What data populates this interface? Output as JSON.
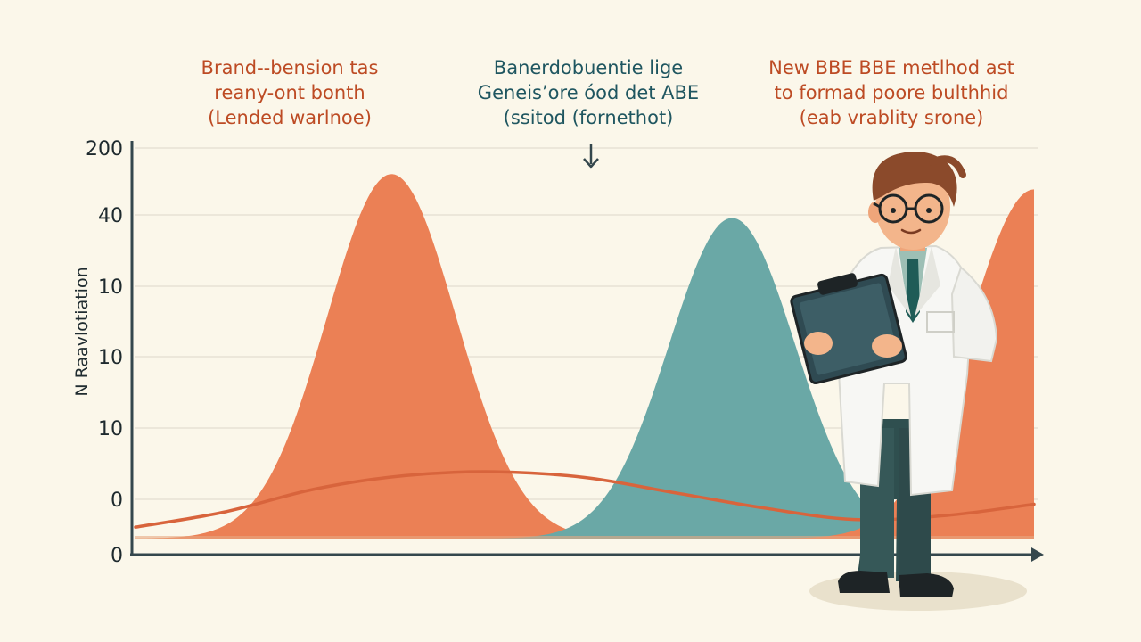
{
  "colors": {
    "background": "#FBF7EA",
    "orange": "#EB8055",
    "teal": "#6AA8A6",
    "line": "#D8643C",
    "axis": "#34474D",
    "annotation_orange": "#BD4B24",
    "annotation_teal": "#1F5660",
    "grid": "#ECE7DA"
  },
  "chart_data": {
    "type": "area",
    "ylabel": "N Raavlotiation",
    "y_ticks": [
      "200",
      "40",
      "10",
      "10",
      "10",
      "0",
      "0"
    ],
    "series": [
      {
        "color": "#EB8055",
        "center": 0.285,
        "width": 0.072,
        "peak": 0.955
      },
      {
        "color": "#6AA8A6",
        "center": 0.664,
        "width": 0.07,
        "peak": 0.84
      },
      {
        "color": "#EB8055",
        "center": 1.0,
        "width": 0.073,
        "peak": 0.915
      }
    ],
    "trend_line": {
      "color": "#D8643C",
      "x": [
        0.0,
        0.1,
        0.2,
        0.3,
        0.4,
        0.5,
        0.6,
        0.7,
        0.8,
        0.9,
        1.0
      ],
      "y": [
        0.03,
        0.07,
        0.13,
        0.165,
        0.175,
        0.16,
        0.12,
        0.08,
        0.05,
        0.06,
        0.09
      ]
    }
  },
  "annotations": [
    {
      "lines": [
        "Brand-‑bension tas",
        "reany-ont bonth",
        "(Lended warlnoe)"
      ],
      "color": "#BD4B24"
    },
    {
      "lines": [
        "Banerdobuentie lige",
        "Geneis’ore óod det ABE",
        "(ssitod (fornethot)"
      ],
      "color": "#1F5660"
    },
    {
      "lines": [
        "New BBE BBE metlhod ast",
        "to formad poore bulthhid",
        "(eab vrablity srone)"
      ],
      "color": "#BD4B24"
    }
  ],
  "illustration": {
    "subject": "scientist-with-clipboard",
    "icon": "scientist-icon"
  }
}
